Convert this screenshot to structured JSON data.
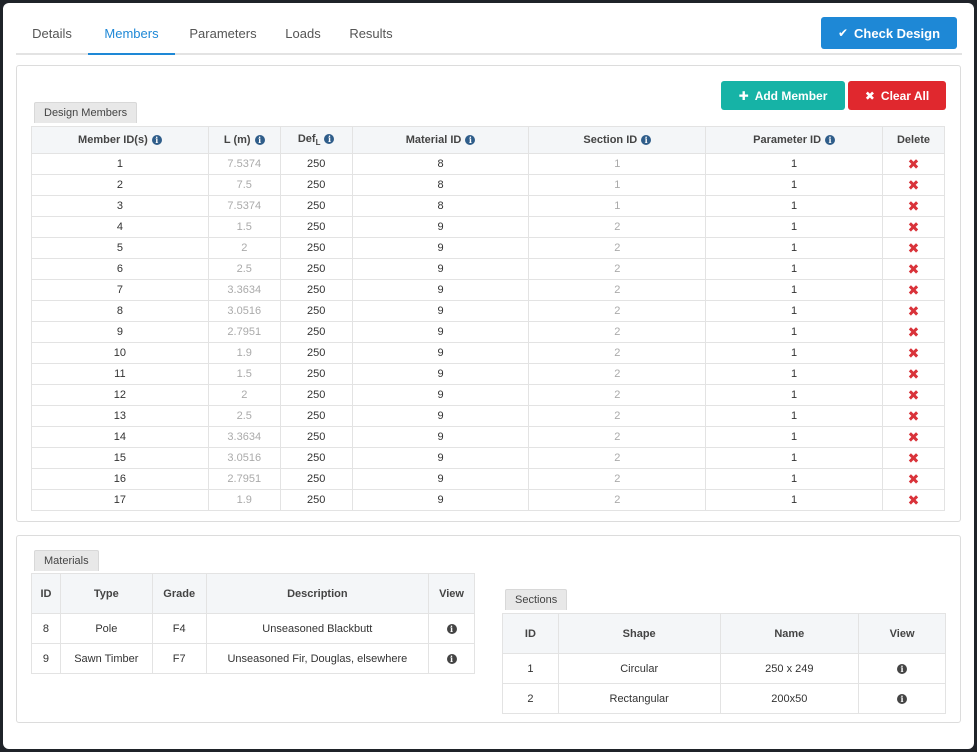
{
  "tabs": [
    {
      "label": "Details",
      "active": false
    },
    {
      "label": "Members",
      "active": true
    },
    {
      "label": "Parameters",
      "active": false
    },
    {
      "label": "Loads",
      "active": false
    },
    {
      "label": "Results",
      "active": false
    }
  ],
  "buttons": {
    "check_design": "Check Design",
    "add_member": "Add Member",
    "clear_all": "Clear All"
  },
  "icons": {
    "check": "check-icon",
    "plus": "plus-icon",
    "times": "times-icon",
    "info": "info-icon",
    "delete": "delete-x-icon"
  },
  "colors": {
    "accent": "#1e88d6",
    "teal": "#16b3a6",
    "danger": "#e0282e"
  },
  "design_members": {
    "legend": "Design Members",
    "columns": {
      "member_ids": "Member ID(s)",
      "length": "L (m)",
      "def_main": "Def",
      "def_sub": "L",
      "material_id": "Material ID",
      "section_id": "Section ID",
      "parameter_id": "Parameter ID",
      "delete": "Delete"
    },
    "rows": [
      {
        "id": "1",
        "l": "7.5374",
        "def": "250",
        "mat": "8",
        "sec": "1",
        "param": "1"
      },
      {
        "id": "2",
        "l": "7.5",
        "def": "250",
        "mat": "8",
        "sec": "1",
        "param": "1"
      },
      {
        "id": "3",
        "l": "7.5374",
        "def": "250",
        "mat": "8",
        "sec": "1",
        "param": "1"
      },
      {
        "id": "4",
        "l": "1.5",
        "def": "250",
        "mat": "9",
        "sec": "2",
        "param": "1"
      },
      {
        "id": "5",
        "l": "2",
        "def": "250",
        "mat": "9",
        "sec": "2",
        "param": "1"
      },
      {
        "id": "6",
        "l": "2.5",
        "def": "250",
        "mat": "9",
        "sec": "2",
        "param": "1"
      },
      {
        "id": "7",
        "l": "3.3634",
        "def": "250",
        "mat": "9",
        "sec": "2",
        "param": "1"
      },
      {
        "id": "8",
        "l": "3.0516",
        "def": "250",
        "mat": "9",
        "sec": "2",
        "param": "1"
      },
      {
        "id": "9",
        "l": "2.7951",
        "def": "250",
        "mat": "9",
        "sec": "2",
        "param": "1"
      },
      {
        "id": "10",
        "l": "1.9",
        "def": "250",
        "mat": "9",
        "sec": "2",
        "param": "1"
      },
      {
        "id": "11",
        "l": "1.5",
        "def": "250",
        "mat": "9",
        "sec": "2",
        "param": "1"
      },
      {
        "id": "12",
        "l": "2",
        "def": "250",
        "mat": "9",
        "sec": "2",
        "param": "1"
      },
      {
        "id": "13",
        "l": "2.5",
        "def": "250",
        "mat": "9",
        "sec": "2",
        "param": "1"
      },
      {
        "id": "14",
        "l": "3.3634",
        "def": "250",
        "mat": "9",
        "sec": "2",
        "param": "1"
      },
      {
        "id": "15",
        "l": "3.0516",
        "def": "250",
        "mat": "9",
        "sec": "2",
        "param": "1"
      },
      {
        "id": "16",
        "l": "2.7951",
        "def": "250",
        "mat": "9",
        "sec": "2",
        "param": "1"
      },
      {
        "id": "17",
        "l": "1.9",
        "def": "250",
        "mat": "9",
        "sec": "2",
        "param": "1"
      }
    ]
  },
  "materials": {
    "legend": "Materials",
    "columns": {
      "id": "ID",
      "type": "Type",
      "grade": "Grade",
      "description": "Description",
      "view": "View"
    },
    "rows": [
      {
        "id": "8",
        "type": "Pole",
        "grade": "F4",
        "description": "Unseasoned Blackbutt"
      },
      {
        "id": "9",
        "type": "Sawn Timber",
        "grade": "F7",
        "description": "Unseasoned Fir, Douglas, elsewhere"
      }
    ]
  },
  "sections": {
    "legend": "Sections",
    "columns": {
      "id": "ID",
      "shape": "Shape",
      "name": "Name",
      "view": "View"
    },
    "rows": [
      {
        "id": "1",
        "shape": "Circular",
        "name": "250 x 249"
      },
      {
        "id": "2",
        "shape": "Rectangular",
        "name": "200x50"
      }
    ]
  }
}
